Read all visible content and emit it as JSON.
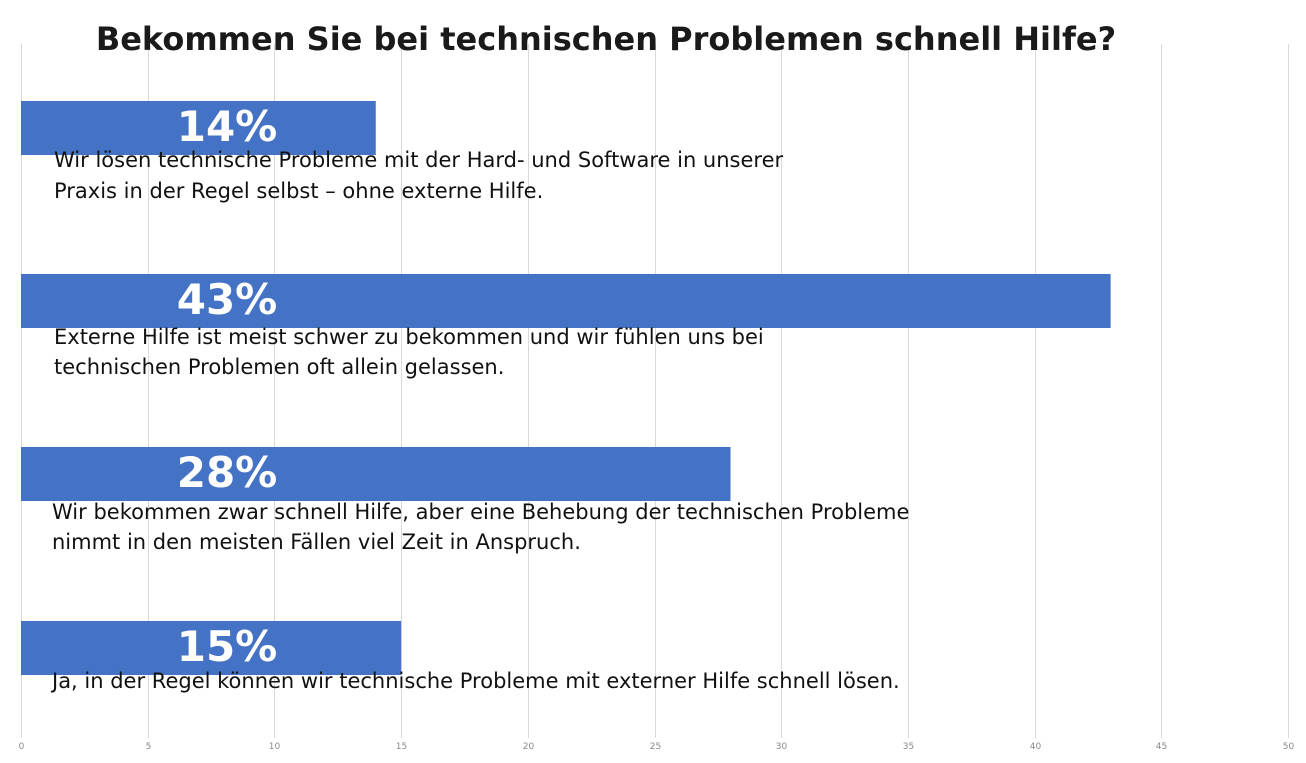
{
  "chart_data": {
    "type": "bar",
    "orientation": "horizontal",
    "title": "Bekommen Sie bei technischen Problemen schnell Hilfe?",
    "categories": [
      "Wir lösen technische Probleme mit der Hard- und Software in unserer\nPraxis in der Regel selbst – ohne externe Hilfe.",
      "Externe Hilfe ist meist schwer zu bekommen und wir fühlen uns bei\ntechnischen Problemen oft allein gelassen.",
      "Wir bekommen zwar schnell Hilfe, aber eine Behebung der technischen Probleme\nnimmt in den meisten Fällen viel Zeit in Anspruch.",
      "Ja, in der Regel können wir technische Probleme mit externer Hilfe schnell lösen."
    ],
    "values": [
      14,
      43,
      28,
      15
    ],
    "data_labels": [
      "14%",
      "43%",
      "28%",
      "15%"
    ],
    "xlim": [
      0,
      50
    ],
    "x_ticks": [
      "0",
      "5",
      "10",
      "15",
      "20",
      "25",
      "30",
      "35",
      "40",
      "45",
      "50"
    ],
    "xlabel": "",
    "ylabel": "",
    "grid": true,
    "legend": "none",
    "colors": {
      "bar": "#4472C4",
      "bar_label": "#ffffff",
      "text": "#111111",
      "grid": "#d9d9d9"
    }
  }
}
